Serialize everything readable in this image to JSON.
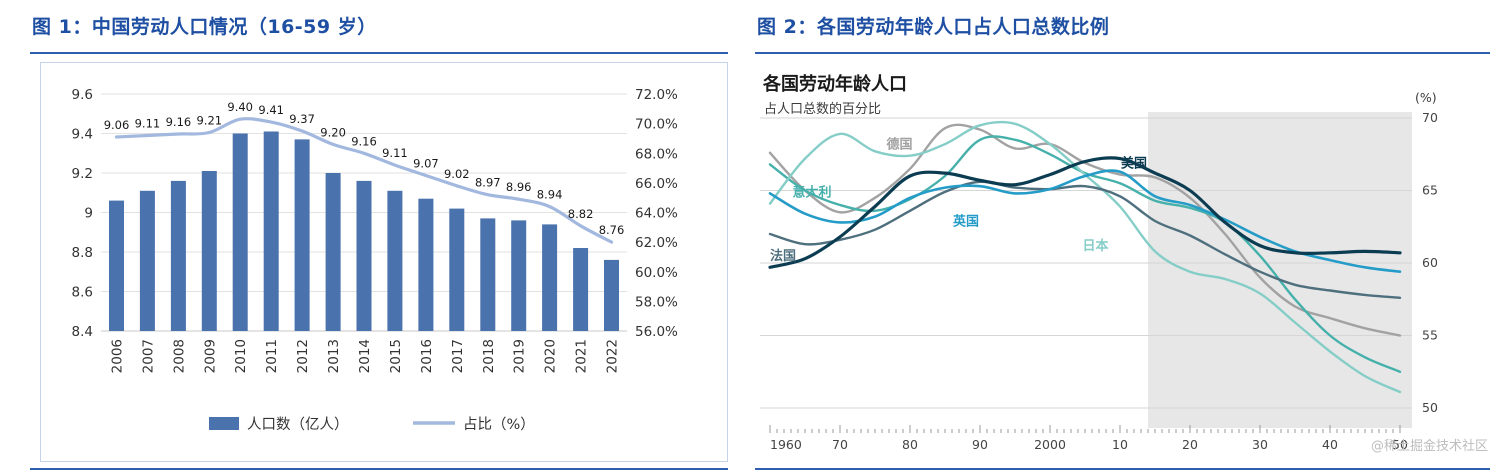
{
  "watermark": "@稀土掘金技术社区",
  "figure1": {
    "title_prefix": "图 1：",
    "title": "中国劳动人口情况（16-59 岁）",
    "colors": {
      "bar": "#4a72ac",
      "line": "#a2b8de",
      "accent": "#2f5fae"
    },
    "legend": [
      "人口数（亿人）",
      "占比（%）"
    ],
    "chart_data": {
      "type": "bar+line",
      "categories": [
        "2006",
        "2007",
        "2008",
        "2009",
        "2010",
        "2011",
        "2012",
        "2013",
        "2014",
        "2015",
        "2016",
        "2017",
        "2018",
        "2019",
        "2020",
        "2021",
        "2022"
      ],
      "series": [
        {
          "key": "population-bars",
          "name": "人口数（亿人）",
          "type": "bar",
          "axis": "left",
          "values": [
            9.06,
            9.11,
            9.16,
            9.21,
            9.4,
            9.41,
            9.37,
            9.2,
            9.16,
            9.11,
            9.07,
            9.02,
            8.97,
            8.96,
            8.94,
            8.82,
            8.76
          ]
        },
        {
          "key": "ratio-line",
          "name": "占比（%）",
          "type": "line",
          "axis": "right",
          "values": [
            69.1,
            69.2,
            69.3,
            69.4,
            70.3,
            70.1,
            69.5,
            68.6,
            68.0,
            67.2,
            66.5,
            65.8,
            65.2,
            64.9,
            64.4,
            63.1,
            62.0
          ]
        }
      ],
      "left_axis": {
        "min": 8.4,
        "max": 9.6,
        "tick_values": [
          9.6,
          9.4,
          9.2,
          9.0,
          8.8,
          8.6,
          8.4
        ],
        "tick_labels": [
          "9.6",
          "9.4",
          "9.2",
          "9",
          "8.8",
          "8.6",
          "8.4"
        ]
      },
      "right_axis": {
        "min": 56,
        "max": 72,
        "tick_values": [
          72,
          70,
          68,
          66,
          64,
          62,
          60,
          58,
          56
        ],
        "tick_labels": [
          "72.0%",
          "70.0%",
          "68.0%",
          "66.0%",
          "64.0%",
          "62.0%",
          "60.0%",
          "58.0%",
          "56.0%"
        ]
      }
    }
  },
  "figure2": {
    "title_prefix": "图 2：",
    "title": "各国劳动年龄人口占人口总数比例",
    "chart_title": "各国劳动年龄人口",
    "chart_subtitle": "占人口总数的百分比",
    "unit_label": "(%)",
    "chart_data": {
      "type": "line",
      "x": [
        1960,
        1965,
        1970,
        1975,
        1980,
        1985,
        1990,
        1995,
        2000,
        2005,
        2010,
        2015,
        2020,
        2025,
        2030,
        2035,
        2040,
        2045,
        2050
      ],
      "x_tick_years": [
        1960,
        1970,
        1980,
        1990,
        2000,
        2010,
        2020,
        2030,
        2040,
        2050
      ],
      "x_tick_labels": [
        "1960",
        "70",
        "80",
        "90",
        "2000",
        "10",
        "20",
        "30",
        "40",
        "50"
      ],
      "y_ticks": [
        70,
        65,
        60,
        55,
        50
      ],
      "ylim": [
        50,
        70
      ],
      "forecast_start": 2014,
      "series": [
        {
          "key": "germany",
          "name": "德国",
          "color": "#a2a2a2",
          "width": 2.4,
          "label_at": [
            1978.5,
            67.9
          ],
          "values": [
            67.6,
            65.0,
            63.5,
            64.5,
            66.5,
            69.3,
            69.2,
            67.9,
            68.2,
            66.9,
            66.1,
            65.9,
            64.5,
            62.0,
            59.0,
            57.0,
            56.2,
            55.5,
            55.0
          ]
        },
        {
          "key": "italy",
          "name": "意大利",
          "color": "#46b0ab",
          "width": 2.4,
          "label_at": [
            1966,
            64.6
          ],
          "values": [
            66.8,
            65.0,
            64.0,
            63.6,
            64.4,
            66.0,
            68.5,
            68.5,
            67.5,
            66.2,
            65.5,
            64.3,
            63.8,
            62.8,
            60.5,
            57.5,
            55.0,
            53.5,
            52.5
          ]
        },
        {
          "key": "japan",
          "name": "日本",
          "color": "#85cdc7",
          "width": 2.4,
          "label_at": [
            2006.5,
            60.9
          ],
          "values": [
            64.1,
            67.2,
            68.9,
            67.7,
            67.4,
            68.2,
            69.5,
            69.6,
            68.2,
            66.1,
            63.9,
            60.8,
            59.4,
            58.9,
            57.9,
            55.9,
            53.9,
            52.2,
            51.1
          ]
        },
        {
          "key": "france",
          "name": "法国",
          "color": "#4e6f7d",
          "width": 2.4,
          "label_at": [
            1960,
            60.2
          ],
          "anchor": "start",
          "values": [
            62.0,
            61.3,
            61.6,
            62.3,
            63.6,
            64.9,
            65.6,
            65.2,
            65.1,
            65.3,
            64.6,
            62.9,
            61.9,
            60.6,
            59.4,
            58.5,
            58.1,
            57.8,
            57.6
          ]
        },
        {
          "key": "uk",
          "name": "英国",
          "color": "#259cc8",
          "width": 2.6,
          "label_at": [
            1988,
            62.6
          ],
          "values": [
            64.8,
            63.4,
            62.8,
            63.2,
            64.5,
            65.2,
            65.3,
            64.8,
            65.1,
            66.0,
            66.3,
            64.6,
            64.0,
            63.0,
            61.8,
            60.8,
            60.2,
            59.7,
            59.4
          ]
        },
        {
          "key": "us",
          "name": "美国",
          "color": "#0c3c52",
          "width": 3.2,
          "label_at": [
            2012,
            66.6
          ],
          "values": [
            59.7,
            60.3,
            61.8,
            63.9,
            66.0,
            66.2,
            65.7,
            65.4,
            66.1,
            67.0,
            67.2,
            66.2,
            65.0,
            62.8,
            61.2,
            60.7,
            60.7,
            60.8,
            60.7
          ]
        }
      ]
    }
  }
}
